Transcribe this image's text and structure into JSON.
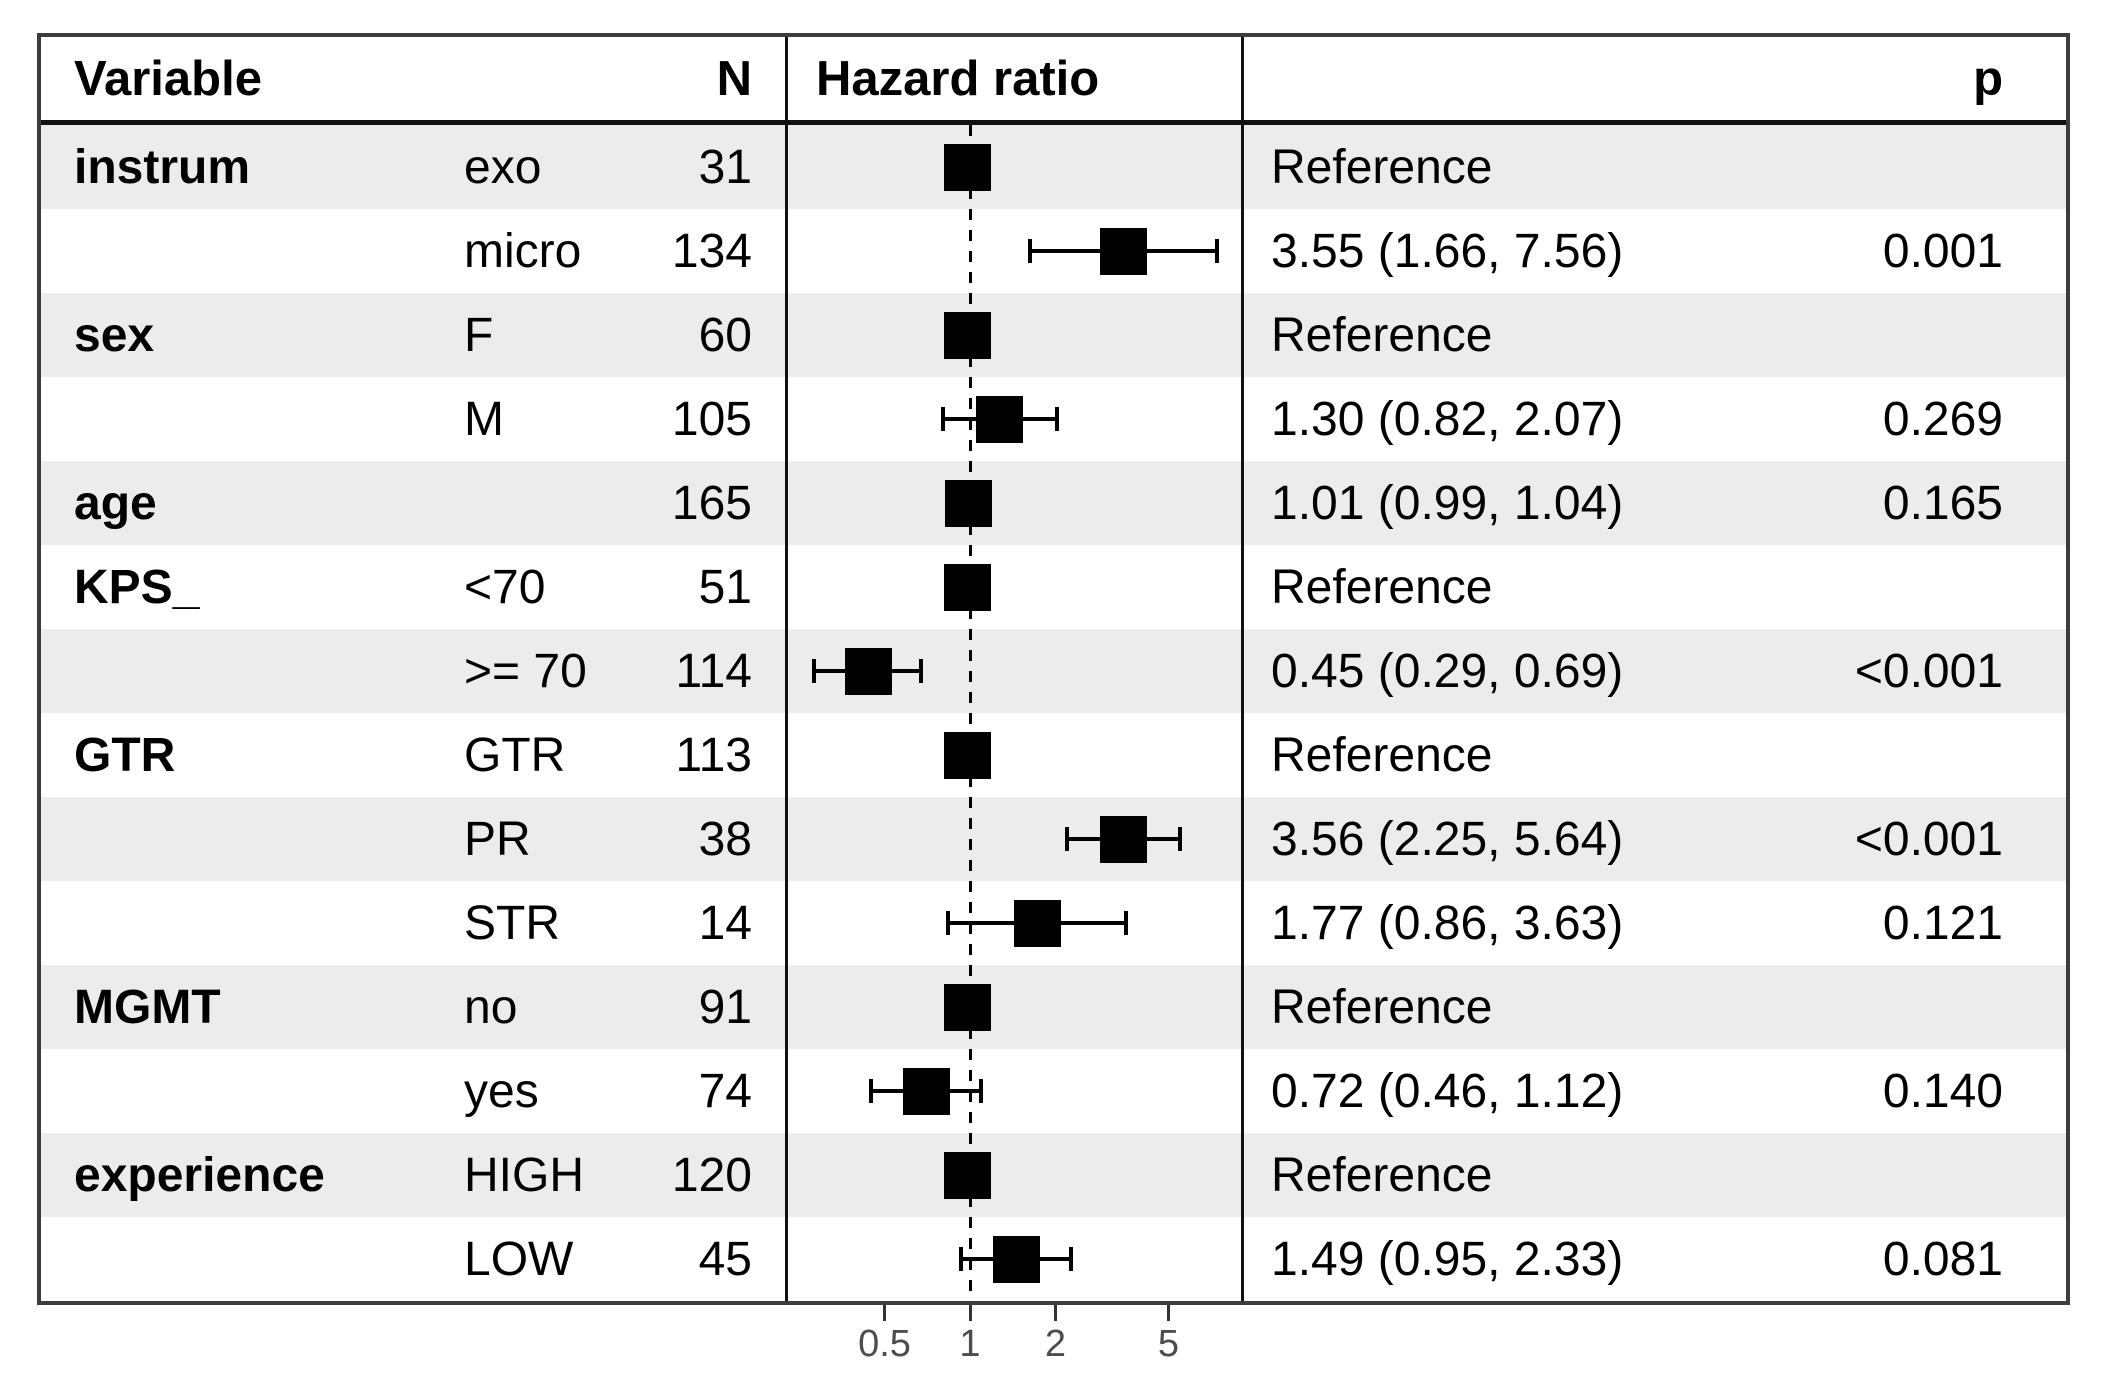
{
  "header": {
    "variable": "Variable",
    "n": "N",
    "hazard_ratio": "Hazard ratio",
    "p": "p"
  },
  "colors": {
    "stripe": "#ececec",
    "frame": "#3d3d3d",
    "inner_lines": "#111111",
    "marker": "#000000",
    "axis_text": "#4d4d4d"
  },
  "chart_data": {
    "type": "forest",
    "x_scale": "log10",
    "x_ticks": [
      0.5,
      1,
      2,
      5
    ],
    "x_tick_labels": [
      "0.5",
      "1",
      "2",
      "5"
    ],
    "reference_line": 1,
    "marker_shape": "square",
    "rows": [
      {
        "variable": "instrum",
        "level": "exo",
        "n": "31",
        "hr": 1.0,
        "ci": null,
        "estimate_label": "Reference",
        "p_label": ""
      },
      {
        "variable": "",
        "level": "micro",
        "n": "134",
        "hr": 3.55,
        "ci": [
          1.66,
          7.56
        ],
        "estimate_label": "3.55 (1.66, 7.56)",
        "p_label": "0.001"
      },
      {
        "variable": "sex",
        "level": "F",
        "n": "60",
        "hr": 1.0,
        "ci": null,
        "estimate_label": "Reference",
        "p_label": ""
      },
      {
        "variable": "",
        "level": "M",
        "n": "105",
        "hr": 1.3,
        "ci": [
          0.82,
          2.07
        ],
        "estimate_label": "1.30 (0.82, 2.07)",
        "p_label": "0.269"
      },
      {
        "variable": "age",
        "level": "",
        "n": "165",
        "hr": 1.01,
        "ci": [
          0.99,
          1.04
        ],
        "estimate_label": "1.01 (0.99, 1.04)",
        "p_label": "0.165"
      },
      {
        "variable": "KPS_",
        "level": "<70",
        "n": "51",
        "hr": 1.0,
        "ci": null,
        "estimate_label": "Reference",
        "p_label": ""
      },
      {
        "variable": "",
        "level": ">= 70",
        "n": "114",
        "hr": 0.45,
        "ci": [
          0.29,
          0.69
        ],
        "estimate_label": "0.45 (0.29, 0.69)",
        "p_label": "<0.001"
      },
      {
        "variable": "GTR",
        "level": "GTR",
        "n": "113",
        "hr": 1.0,
        "ci": null,
        "estimate_label": "Reference",
        "p_label": ""
      },
      {
        "variable": "",
        "level": "PR",
        "n": "38",
        "hr": 3.56,
        "ci": [
          2.25,
          5.64
        ],
        "estimate_label": "3.56 (2.25, 5.64)",
        "p_label": "<0.001"
      },
      {
        "variable": "",
        "level": "STR",
        "n": "14",
        "hr": 1.77,
        "ci": [
          0.86,
          3.63
        ],
        "estimate_label": "1.77 (0.86, 3.63)",
        "p_label": "0.121"
      },
      {
        "variable": "MGMT",
        "level": "no",
        "n": "91",
        "hr": 1.0,
        "ci": null,
        "estimate_label": "Reference",
        "p_label": ""
      },
      {
        "variable": "",
        "level": "yes",
        "n": "74",
        "hr": 0.72,
        "ci": [
          0.46,
          1.12
        ],
        "estimate_label": "0.72 (0.46, 1.12)",
        "p_label": "0.140"
      },
      {
        "variable": "experience",
        "level": "HIGH",
        "n": "120",
        "hr": 1.0,
        "ci": null,
        "estimate_label": "Reference",
        "p_label": ""
      },
      {
        "variable": "",
        "level": "LOW",
        "n": "45",
        "hr": 1.49,
        "ci": [
          0.95,
          2.33
        ],
        "estimate_label": "1.49 (0.95, 2.33)",
        "p_label": "0.081"
      }
    ]
  }
}
